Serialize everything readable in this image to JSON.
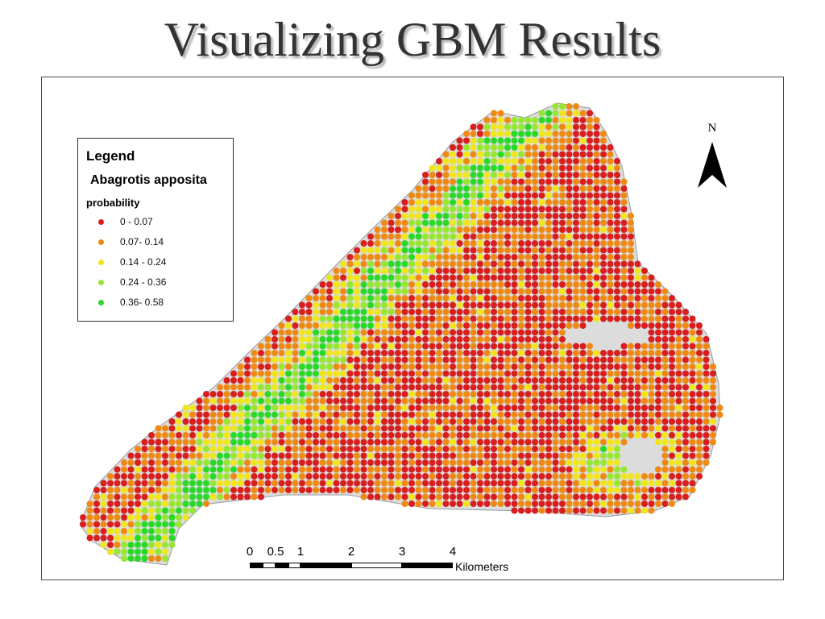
{
  "slide": {
    "title": "Visualizing GBM Results"
  },
  "legend": {
    "title": "Legend",
    "species": "Abagrotis apposita",
    "field": "probability",
    "classes": [
      {
        "label": "0 - 0.07",
        "color": "#d81e1e"
      },
      {
        "label": "0.07- 0.14",
        "color": "#ee8a14"
      },
      {
        "label": "0.14 - 0.24",
        "color": "#f0e61e"
      },
      {
        "label": "0.24 - 0.36",
        "color": "#96e632"
      },
      {
        "label": "0.36- 0.58",
        "color": "#2ad82a"
      }
    ]
  },
  "north_arrow": {
    "label": "N"
  },
  "scale_bar": {
    "ticks": [
      "0",
      "0.5",
      "1",
      "2",
      "3",
      "4"
    ],
    "unit": "Kilometers"
  },
  "colors": {
    "study_area": "#dcdcdc",
    "frame": "#4a4a4a"
  }
}
